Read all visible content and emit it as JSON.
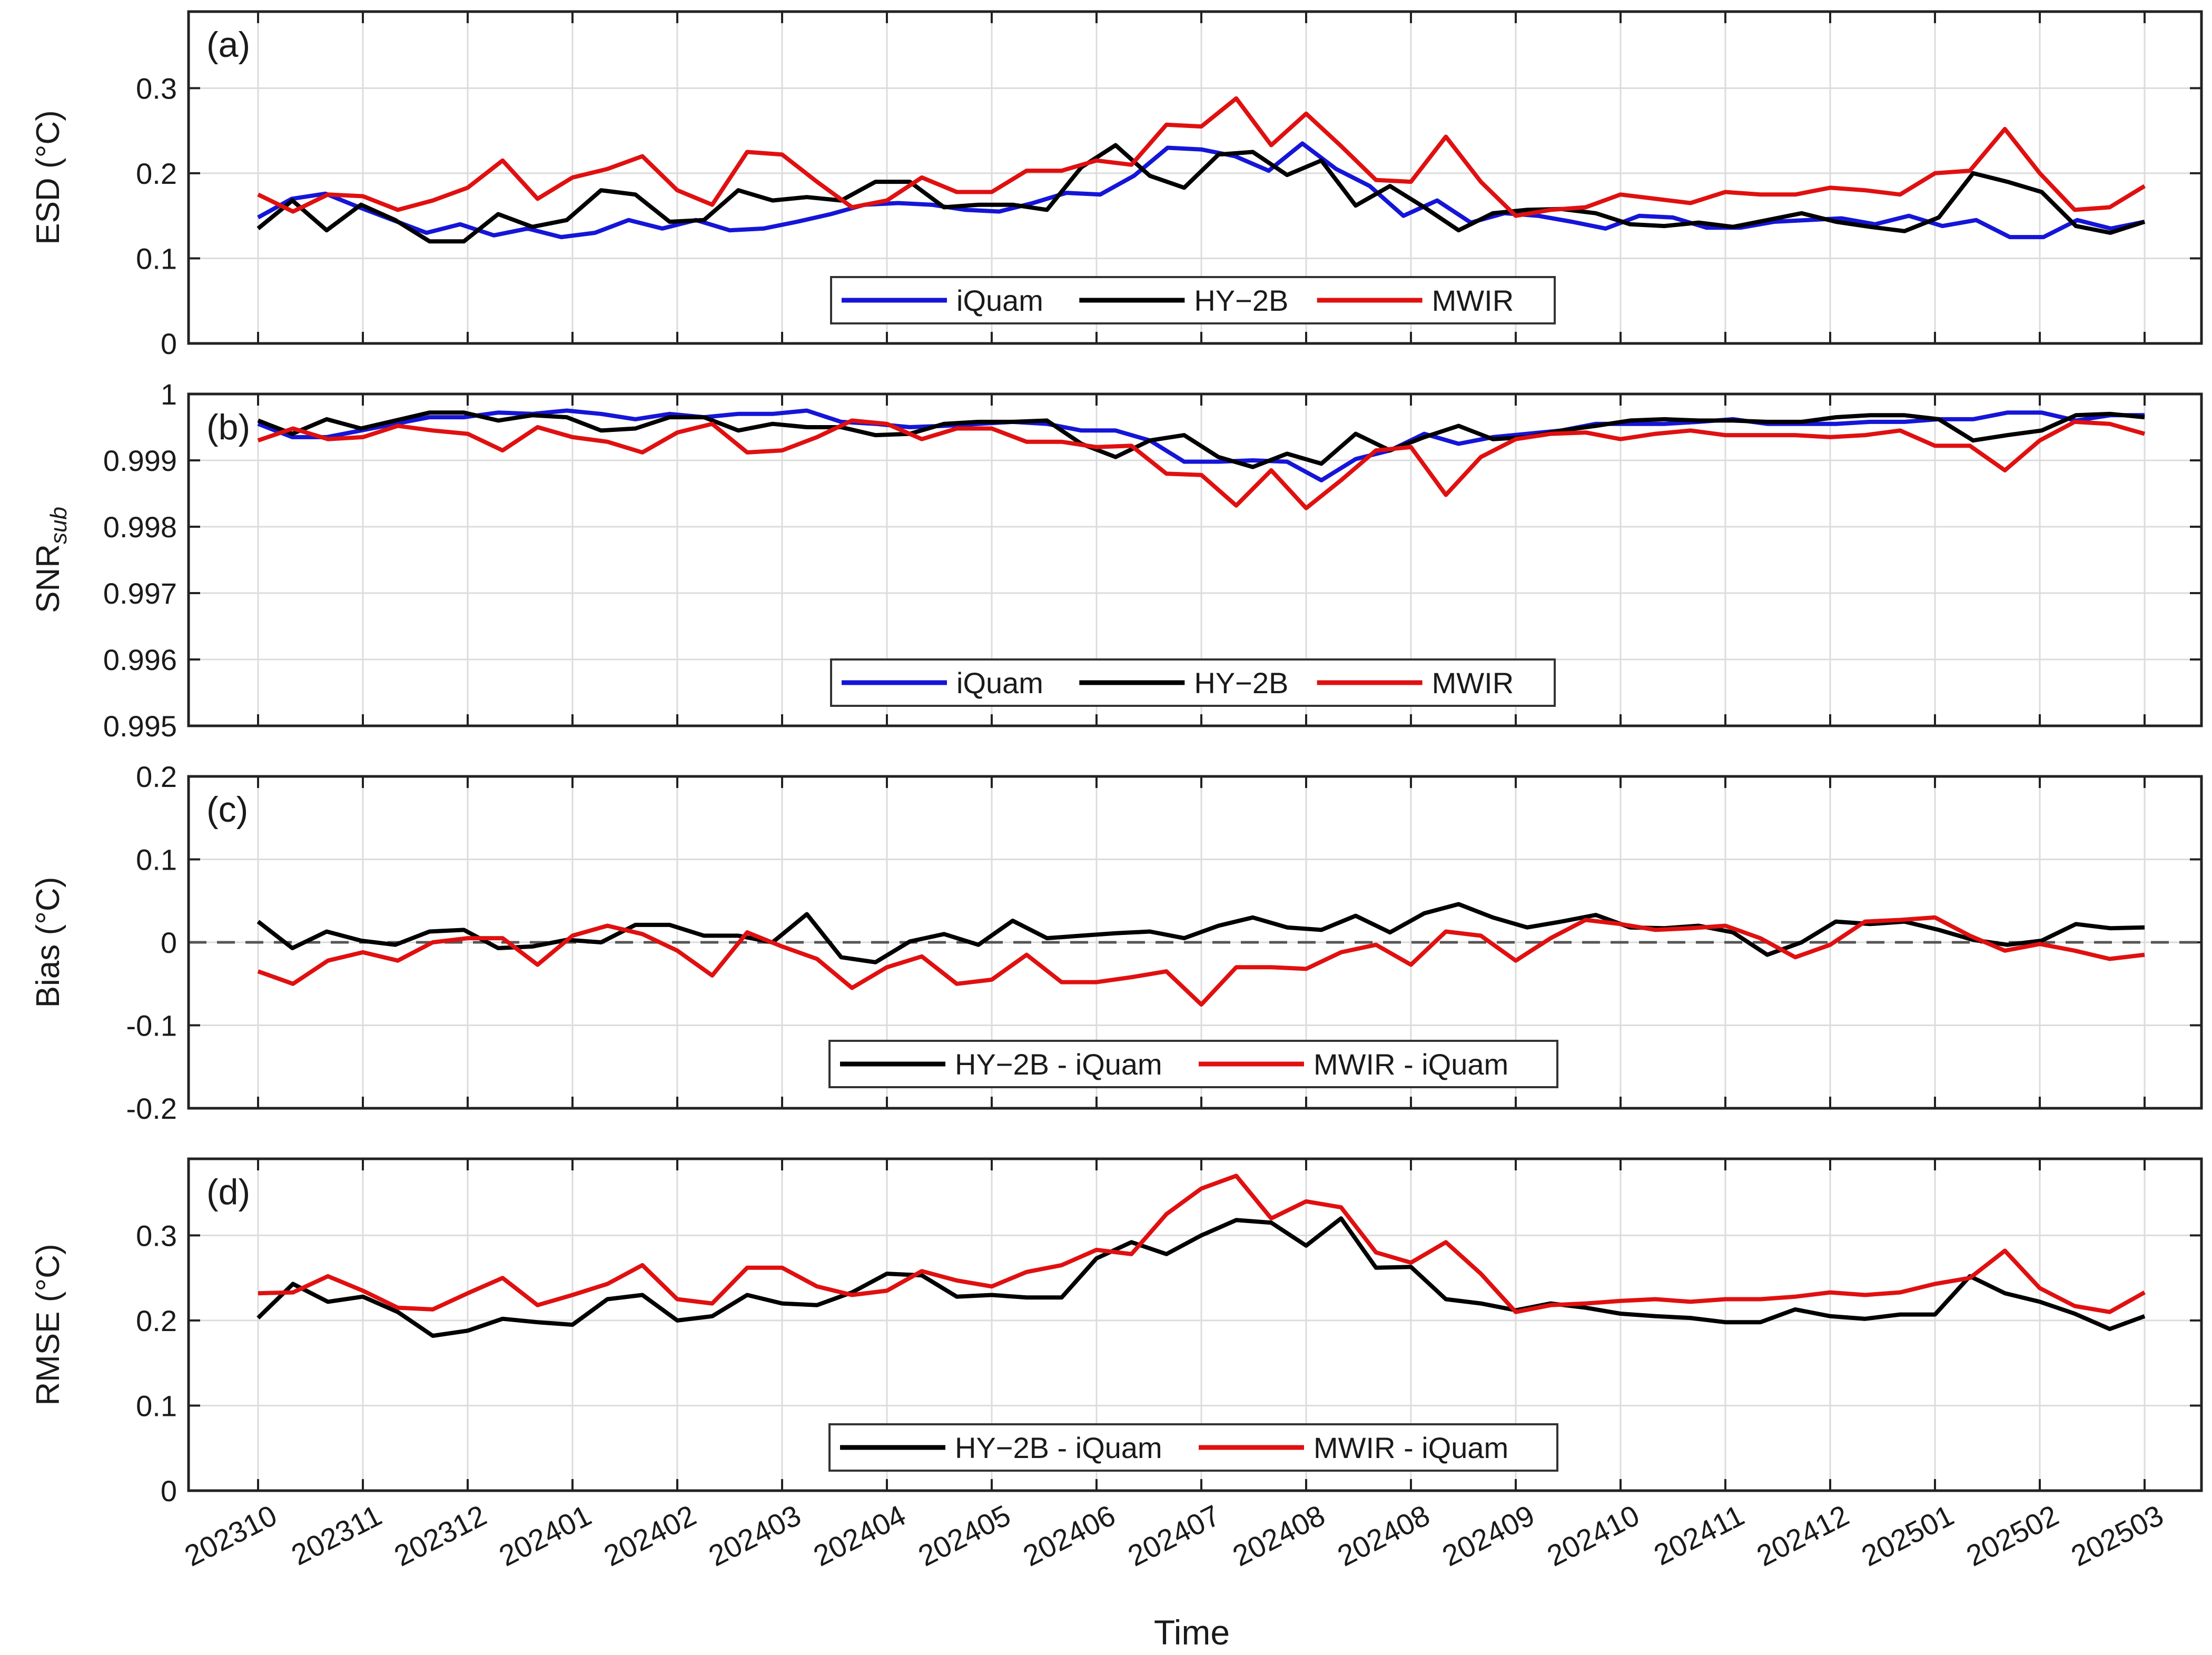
{
  "x_axis": {
    "label": "Time",
    "tick_labels": [
      "202310",
      "202311",
      "202312",
      "202401",
      "202402",
      "202403",
      "202404",
      "202405",
      "202406",
      "202407",
      "202408",
      "202408",
      "202409",
      "202410",
      "202411",
      "202412",
      "202501",
      "202502",
      "202503"
    ]
  },
  "colors": {
    "iQuam": "#1515d8",
    "HY-2B": "#000000",
    "MWIR": "#e01010",
    "zero_line": "#555555",
    "grid": "#dcdcdc"
  },
  "chart_data": [
    {
      "panel": "(a)",
      "type": "line",
      "ylabel": "ESD (°C)",
      "ylim": [
        0,
        0.39
      ],
      "yticks": [
        0,
        0.1,
        0.2,
        0.3
      ],
      "ytick_labels": [
        "0",
        "0.1",
        "0.2",
        "0.3"
      ],
      "legend": [
        "iQuam",
        "HY−2B",
        "MWIR"
      ],
      "legend_position": "bottom-center",
      "series": [
        {
          "name": "iQuam",
          "color": "#1515d8",
          "values": [
            0.148,
            0.17,
            0.176,
            0.16,
            0.145,
            0.13,
            0.14,
            0.127,
            0.135,
            0.125,
            0.13,
            0.145,
            0.135,
            0.145,
            0.133,
            0.135,
            0.143,
            0.152,
            0.163,
            0.165,
            0.163,
            0.157,
            0.155,
            0.165,
            0.177,
            0.175,
            0.197,
            0.23,
            0.228,
            0.22,
            0.203,
            0.235,
            0.205,
            0.185,
            0.15,
            0.168,
            0.142,
            0.153,
            0.15,
            0.143,
            0.135,
            0.15,
            0.148,
            0.136,
            0.136,
            0.143,
            0.145,
            0.147,
            0.14,
            0.15,
            0.138,
            0.145,
            0.125,
            0.125,
            0.145,
            0.135,
            0.143
          ]
        },
        {
          "name": "HY-2B",
          "color": "#000000",
          "values": [
            0.135,
            0.168,
            0.133,
            0.163,
            0.145,
            0.12,
            0.12,
            0.152,
            0.137,
            0.145,
            0.18,
            0.175,
            0.143,
            0.145,
            0.18,
            0.168,
            0.172,
            0.168,
            0.19,
            0.19,
            0.16,
            0.163,
            0.163,
            0.157,
            0.207,
            0.233,
            0.197,
            0.183,
            0.222,
            0.225,
            0.198,
            0.215,
            0.162,
            0.185,
            0.16,
            0.133,
            0.153,
            0.157,
            0.158,
            0.153,
            0.14,
            0.138,
            0.142,
            0.137,
            0.145,
            0.153,
            0.143,
            0.137,
            0.132,
            0.148,
            0.2,
            0.19,
            0.178,
            0.138,
            0.13,
            0.143
          ]
        },
        {
          "name": "MWIR",
          "color": "#e01010",
          "values": [
            0.175,
            0.155,
            0.175,
            0.173,
            0.157,
            0.168,
            0.183,
            0.215,
            0.17,
            0.195,
            0.205,
            0.22,
            0.18,
            0.163,
            0.225,
            0.222,
            0.19,
            0.16,
            0.168,
            0.195,
            0.178,
            0.178,
            0.203,
            0.203,
            0.215,
            0.21,
            0.257,
            0.255,
            0.288,
            0.233,
            0.27,
            0.232,
            0.192,
            0.19,
            0.243,
            0.19,
            0.15,
            0.157,
            0.16,
            0.175,
            0.17,
            0.165,
            0.178,
            0.175,
            0.175,
            0.183,
            0.18,
            0.175,
            0.2,
            0.203,
            0.252,
            0.2,
            0.157,
            0.16,
            0.185
          ]
        }
      ]
    },
    {
      "panel": "(b)",
      "type": "line",
      "ylabel": "SNR",
      "ylabel_sub": "sub",
      "ylim": [
        0.995,
        1.0
      ],
      "yticks": [
        0.995,
        0.996,
        0.997,
        0.998,
        0.999,
        1.0
      ],
      "ytick_labels": [
        "0.995",
        "0.996",
        "0.997",
        "0.998",
        "0.999",
        "1"
      ],
      "legend": [
        "iQuam",
        "HY−2B",
        "MWIR"
      ],
      "legend_position": "bottom-center",
      "series": [
        {
          "name": "iQuam",
          "color": "#1515d8",
          "values": [
            0.99955,
            0.99935,
            0.99935,
            0.99945,
            0.99955,
            0.99965,
            0.99965,
            0.99972,
            0.9997,
            0.99975,
            0.9997,
            0.99962,
            0.9997,
            0.99965,
            0.9997,
            0.9997,
            0.99975,
            0.99958,
            0.99955,
            0.9995,
            0.99952,
            0.99955,
            0.99958,
            0.99955,
            0.99945,
            0.99945,
            0.9993,
            0.99898,
            0.99898,
            0.999,
            0.99898,
            0.9987,
            0.99902,
            0.99915,
            0.9994,
            0.99925,
            0.99935,
            0.9994,
            0.99945,
            0.99955,
            0.99955,
            0.99955,
            0.99958,
            0.99962,
            0.99955,
            0.99955,
            0.99955,
            0.99958,
            0.99958,
            0.99962,
            0.99962,
            0.99972,
            0.99972,
            0.9996,
            0.99968,
            0.99968
          ]
        },
        {
          "name": "HY-2B",
          "color": "#000000",
          "values": [
            0.9996,
            0.9994,
            0.99962,
            0.99948,
            0.9996,
            0.99972,
            0.99972,
            0.9996,
            0.99968,
            0.99965,
            0.99945,
            0.99948,
            0.99965,
            0.99965,
            0.99945,
            0.99955,
            0.9995,
            0.9995,
            0.99938,
            0.9994,
            0.99955,
            0.99958,
            0.99958,
            0.9996,
            0.99925,
            0.99905,
            0.9993,
            0.99938,
            0.99905,
            0.9989,
            0.9991,
            0.99895,
            0.9994,
            0.99915,
            0.99935,
            0.99952,
            0.99932,
            0.99935,
            0.99945,
            0.99952,
            0.9996,
            0.99962,
            0.9996,
            0.9996,
            0.99958,
            0.99958,
            0.99965,
            0.99968,
            0.99968,
            0.99962,
            0.9993,
            0.99938,
            0.99945,
            0.99968,
            0.9997,
            0.99965
          ]
        },
        {
          "name": "MWIR",
          "color": "#e01010",
          "values": [
            0.9993,
            0.99948,
            0.99932,
            0.99935,
            0.99952,
            0.99945,
            0.9994,
            0.99915,
            0.9995,
            0.99935,
            0.99928,
            0.99912,
            0.99942,
            0.99955,
            0.99912,
            0.99915,
            0.99935,
            0.9996,
            0.99955,
            0.99932,
            0.99948,
            0.99948,
            0.99928,
            0.99928,
            0.9992,
            0.99922,
            0.9988,
            0.99878,
            0.99832,
            0.99885,
            0.99828,
            0.9987,
            0.99915,
            0.9992,
            0.99848,
            0.99905,
            0.99932,
            0.9994,
            0.99942,
            0.99932,
            0.9994,
            0.99945,
            0.99938,
            0.99938,
            0.99938,
            0.99935,
            0.99938,
            0.99945,
            0.99922,
            0.99922,
            0.99885,
            0.9993,
            0.99958,
            0.99955,
            0.9994
          ]
        }
      ]
    },
    {
      "panel": "(c)",
      "type": "line",
      "ylabel": "Bias (°C)",
      "ylim": [
        -0.2,
        0.2
      ],
      "yticks": [
        -0.2,
        -0.1,
        0,
        0.1,
        0.2
      ],
      "ytick_labels": [
        "-0.2",
        "-0.1",
        "0",
        "0.1",
        "0.2"
      ],
      "reference_line": 0,
      "legend": [
        "HY−2B - iQuam",
        "MWIR - iQuam"
      ],
      "legend_position": "bottom-center",
      "series": [
        {
          "name": "HY-2B - iQuam",
          "color": "#000000",
          "values": [
            0.025,
            -0.007,
            0.013,
            0.002,
            -0.003,
            0.013,
            0.015,
            -0.007,
            -0.005,
            0.003,
            0.0,
            0.021,
            0.021,
            0.008,
            0.008,
            0.0,
            0.034,
            -0.018,
            -0.024,
            0.001,
            0.01,
            -0.003,
            0.026,
            0.005,
            0.008,
            0.011,
            0.013,
            0.005,
            0.02,
            0.03,
            0.018,
            0.015,
            0.032,
            0.012,
            0.035,
            0.046,
            0.03,
            0.018,
            0.025,
            0.033,
            0.018,
            0.017,
            0.02,
            0.012,
            -0.015,
            0.0,
            0.025,
            0.022,
            0.025,
            0.015,
            0.003,
            -0.003,
            0.002,
            0.022,
            0.017,
            0.018
          ]
        },
        {
          "name": "MWIR - iQuam",
          "color": "#e01010",
          "values": [
            -0.035,
            -0.05,
            -0.022,
            -0.012,
            -0.022,
            0.0,
            0.005,
            0.005,
            -0.027,
            0.008,
            0.02,
            0.01,
            -0.01,
            -0.04,
            0.012,
            -0.005,
            -0.02,
            -0.055,
            -0.03,
            -0.017,
            -0.05,
            -0.045,
            -0.015,
            -0.048,
            -0.048,
            -0.042,
            -0.035,
            -0.075,
            -0.03,
            -0.03,
            -0.032,
            -0.012,
            -0.003,
            -0.027,
            0.013,
            0.008,
            -0.022,
            0.005,
            0.027,
            0.022,
            0.015,
            0.017,
            0.02,
            0.005,
            -0.018,
            -0.003,
            0.025,
            0.027,
            0.03,
            0.008,
            -0.01,
            -0.002,
            -0.01,
            -0.02,
            -0.015
          ]
        }
      ]
    },
    {
      "panel": "(d)",
      "type": "line",
      "ylabel": "RMSE (°C)",
      "ylim": [
        0,
        0.39
      ],
      "yticks": [
        0,
        0.1,
        0.2,
        0.3
      ],
      "ytick_labels": [
        "0",
        "0.1",
        "0.2",
        "0.3"
      ],
      "legend": [
        "HY−2B - iQuam",
        "MWIR - iQuam"
      ],
      "legend_position": "bottom-center",
      "series": [
        {
          "name": "HY-2B - iQuam",
          "color": "#000000",
          "values": [
            0.203,
            0.243,
            0.222,
            0.228,
            0.21,
            0.182,
            0.188,
            0.202,
            0.198,
            0.195,
            0.225,
            0.23,
            0.2,
            0.205,
            0.23,
            0.22,
            0.218,
            0.233,
            0.255,
            0.253,
            0.228,
            0.23,
            0.227,
            0.227,
            0.273,
            0.292,
            0.278,
            0.3,
            0.318,
            0.315,
            0.288,
            0.32,
            0.262,
            0.263,
            0.225,
            0.22,
            0.212,
            0.22,
            0.215,
            0.208,
            0.205,
            0.203,
            0.198,
            0.198,
            0.213,
            0.205,
            0.202,
            0.207,
            0.207,
            0.252,
            0.232,
            0.222,
            0.208,
            0.19,
            0.205
          ]
        },
        {
          "name": "MWIR - iQuam",
          "color": "#e01010",
          "values": [
            0.232,
            0.233,
            0.252,
            0.235,
            0.215,
            0.213,
            0.232,
            0.25,
            0.218,
            0.23,
            0.243,
            0.265,
            0.225,
            0.22,
            0.262,
            0.262,
            0.24,
            0.23,
            0.235,
            0.258,
            0.247,
            0.24,
            0.257,
            0.265,
            0.283,
            0.278,
            0.325,
            0.355,
            0.37,
            0.32,
            0.34,
            0.333,
            0.28,
            0.268,
            0.292,
            0.255,
            0.21,
            0.218,
            0.22,
            0.223,
            0.225,
            0.222,
            0.225,
            0.225,
            0.228,
            0.233,
            0.23,
            0.233,
            0.243,
            0.25,
            0.282,
            0.238,
            0.217,
            0.21,
            0.233
          ]
        }
      ]
    }
  ]
}
